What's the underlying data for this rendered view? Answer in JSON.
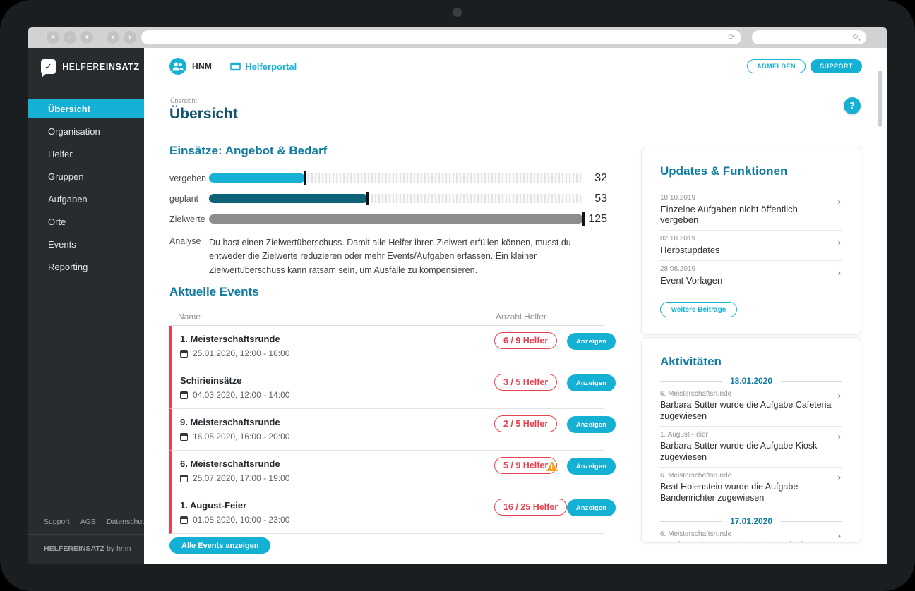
{
  "browser": {
    "window_icons": {
      "close": "×",
      "minimize": "−",
      "add": "+",
      "back": "‹",
      "forward": "›",
      "reload": "⟳"
    },
    "url_value": "",
    "search_value": ""
  },
  "sidebar": {
    "logo_check": "✓",
    "logo_part1": "HELFER",
    "logo_part2": "EINSATZ",
    "items": [
      {
        "label": "Übersicht",
        "active": true
      },
      {
        "label": "Organisation"
      },
      {
        "label": "Helfer"
      },
      {
        "label": "Gruppen"
      },
      {
        "label": "Aufgaben"
      },
      {
        "label": "Orte"
      },
      {
        "label": "Events"
      },
      {
        "label": "Reporting"
      }
    ],
    "footer_links": [
      "Support",
      "AGB",
      "Datenschutz"
    ],
    "footer_brand": "HELFEREINSATZ",
    "footer_by": "by hnm"
  },
  "header": {
    "avatar_label": "HNM",
    "portal_link": "Helferportal",
    "logout_button": "ABMELDEN",
    "support_button": "SUPPORT"
  },
  "page": {
    "breadcrumb": "Übersicht",
    "title": "Übersicht",
    "help_button": "?"
  },
  "capacity": {
    "heading": "Einsätze: Angebot & Bedarf",
    "bars": [
      {
        "label": "vergeben",
        "value": 32,
        "max": 125,
        "color": "#16b1d5"
      },
      {
        "label": "geplant",
        "value": 53,
        "max": 125,
        "color": "#0d6478"
      },
      {
        "label": "Zielwerte",
        "value": 125,
        "max": 125,
        "color": "#8d8d8d"
      }
    ],
    "analysis_label": "Analyse",
    "analysis_text": "Du hast einen Zielwertüberschuss. Damit alle Helfer ihren Zielwert erfüllen können, musst du entweder die Zielwerte reduzieren oder mehr Events/Aufgaben erfassen. Ein kleiner Zielwertüberschuss kann ratsam sein, um Ausfälle zu kompensieren."
  },
  "events": {
    "heading": "Aktuelle Events",
    "columns": {
      "name": "Name",
      "helpers": "Anzahl Helfer"
    },
    "rows": [
      {
        "name": "1. Meisterschaftsrunde",
        "date": "25.01.2020, 12:00 - 18:00",
        "badge": "6 / 9 Helfer",
        "warning": false,
        "action": "Anzeigen"
      },
      {
        "name": "Schirieinsätze",
        "date": "04.03.2020, 12:00 - 14:00",
        "badge": "3 / 5 Helfer",
        "warning": false,
        "action": "Anzeigen"
      },
      {
        "name": "9. Meisterschaftsrunde",
        "date": "16.05.2020, 16:00 - 20:00",
        "badge": "2 / 5 Helfer",
        "warning": false,
        "action": "Anzeigen"
      },
      {
        "name": "6. Meisterschaftsrunde",
        "date": "25.07.2020, 17:00 - 19:00",
        "badge": "5 / 9 Helfer",
        "warning": true,
        "action": "Anzeigen"
      },
      {
        "name": "1. August-Feier",
        "date": "01.08.2020, 10:00 - 23:00",
        "badge": "16 / 25 Helfer",
        "warning": false,
        "action": "Anzeigen"
      }
    ],
    "show_all_button": "Alle Events anzeigen"
  },
  "updates": {
    "heading": "Updates & Funktionen",
    "items": [
      {
        "date": "18.10.2019",
        "title": "Einzelne Aufgaben nicht öffentlich vergeben"
      },
      {
        "date": "02.10.2019",
        "title": "Herbstupdates"
      },
      {
        "date": "28.08.2019",
        "title": "Event Vorlagen"
      }
    ],
    "more_button": "weitere Beiträge"
  },
  "activities": {
    "heading": "Aktivitäten",
    "groups": [
      {
        "date": "18.01.2020",
        "items": [
          {
            "event": "6. Meisterschaftsrunde",
            "text": "Barbara Sutter wurde die Aufgabe Cafeteria zugewiesen"
          },
          {
            "event": "1. August-Feier",
            "text": "Barbara Sutter wurde die Aufgabe Kiosk zugewiesen"
          },
          {
            "event": "6. Meisterschaftsrunde",
            "text": "Beat Holenstein wurde die Aufgabe Bandenrichter zugewiesen"
          }
        ]
      },
      {
        "date": "17.01.2020",
        "items": [
          {
            "event": "6. Meisterschaftsrunde",
            "text": "Stephan Blanc wurde von der Aufgabe Bandenrichter entfernt"
          }
        ]
      }
    ]
  },
  "icons": {
    "chevron": "›"
  },
  "colors": {
    "accent": "#14b1d5",
    "accent_dark": "#0d6478",
    "target_gray": "#8d8d8d",
    "alert_red": "#e8414f",
    "warning_yellow": "#f2a71b",
    "heading_teal": "#0f7ca4",
    "title_teal": "#14546e",
    "sidebar_bg": "#282c2e"
  }
}
